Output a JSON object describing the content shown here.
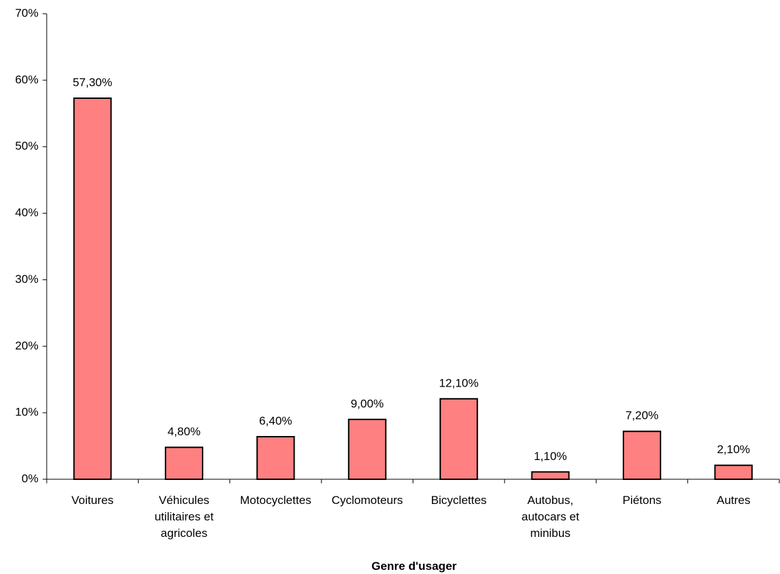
{
  "chart_data": {
    "type": "bar",
    "x_label": "Genre d'usager",
    "categories": [
      "Voitures",
      "Véhicules utilitaires et agricoles",
      "Motocyclettes",
      "Cyclomoteurs",
      "Bicyclettes",
      "Autobus, autocars et minibus",
      "Piétons",
      "Autres"
    ],
    "values": [
      57.3,
      4.8,
      6.4,
      9.0,
      12.1,
      1.1,
      7.2,
      2.1
    ],
    "value_labels": [
      "57,30%",
      "4,80%",
      "6,40%",
      "9,00%",
      "12,10%",
      "1,10%",
      "7,20%",
      "2,10%"
    ],
    "color": "#ff8080",
    "ylim": [
      0,
      70
    ],
    "yticks": [
      {
        "value": 0,
        "label": "0%"
      },
      {
        "value": 10,
        "label": "10%"
      },
      {
        "value": 20,
        "label": "20%"
      },
      {
        "value": 30,
        "label": "30%"
      },
      {
        "value": 40,
        "label": "40%"
      },
      {
        "value": 50,
        "label": "50%"
      },
      {
        "value": 60,
        "label": "60%"
      },
      {
        "value": 70,
        "label": "70%"
      }
    ],
    "grid": false
  }
}
